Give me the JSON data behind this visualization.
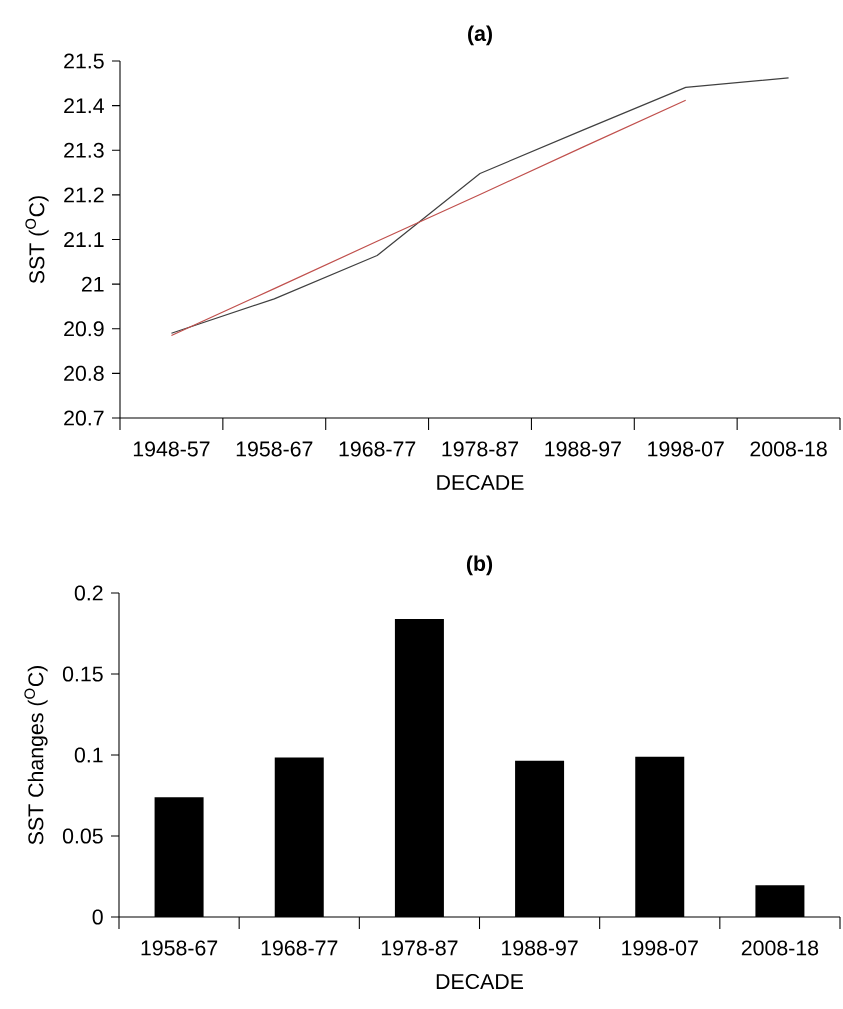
{
  "chart_data": [
    {
      "type": "line",
      "title": "(a)",
      "xlabel": "DECADE",
      "ylabel": "SST ($^{O}$C)",
      "categories": [
        "1948-57",
        "1958-67",
        "1968-77",
        "1978-87",
        "1988-97",
        "1998-07",
        "2008-18"
      ],
      "series": [
        {
          "type": "line",
          "color": "#404040",
          "values": [
            20.89,
            20.967,
            21.064,
            21.248,
            21.345,
            21.441,
            21.462
          ]
        },
        {
          "type": "line",
          "color": "#c0504d",
          "values": [
            20.885,
            20.99,
            21.096,
            21.201,
            21.307,
            21.412,
            null
          ]
        }
      ],
      "ylim": [
        20.7,
        21.5
      ],
      "yticks": [
        20.7,
        20.8,
        20.9,
        21,
        21.1,
        21.2,
        21.3,
        21.4,
        21.5
      ],
      "grid": false,
      "marker": "none"
    },
    {
      "type": "bar",
      "title": "(b)",
      "xlabel": "DECADE",
      "ylabel": "SST Changes ($^{O}$C)",
      "categories": [
        "1958-67",
        "1968-77",
        "1978-87",
        "1988-97",
        "1998-07",
        "2008-18"
      ],
      "values": [
        0.074,
        0.0985,
        0.184,
        0.0965,
        0.099,
        0.0196
      ],
      "color": "#000000",
      "ylim": [
        0,
        0.2
      ],
      "yticks": [
        0,
        0.05,
        0.1,
        0.15,
        0.2
      ],
      "grid": false
    }
  ]
}
